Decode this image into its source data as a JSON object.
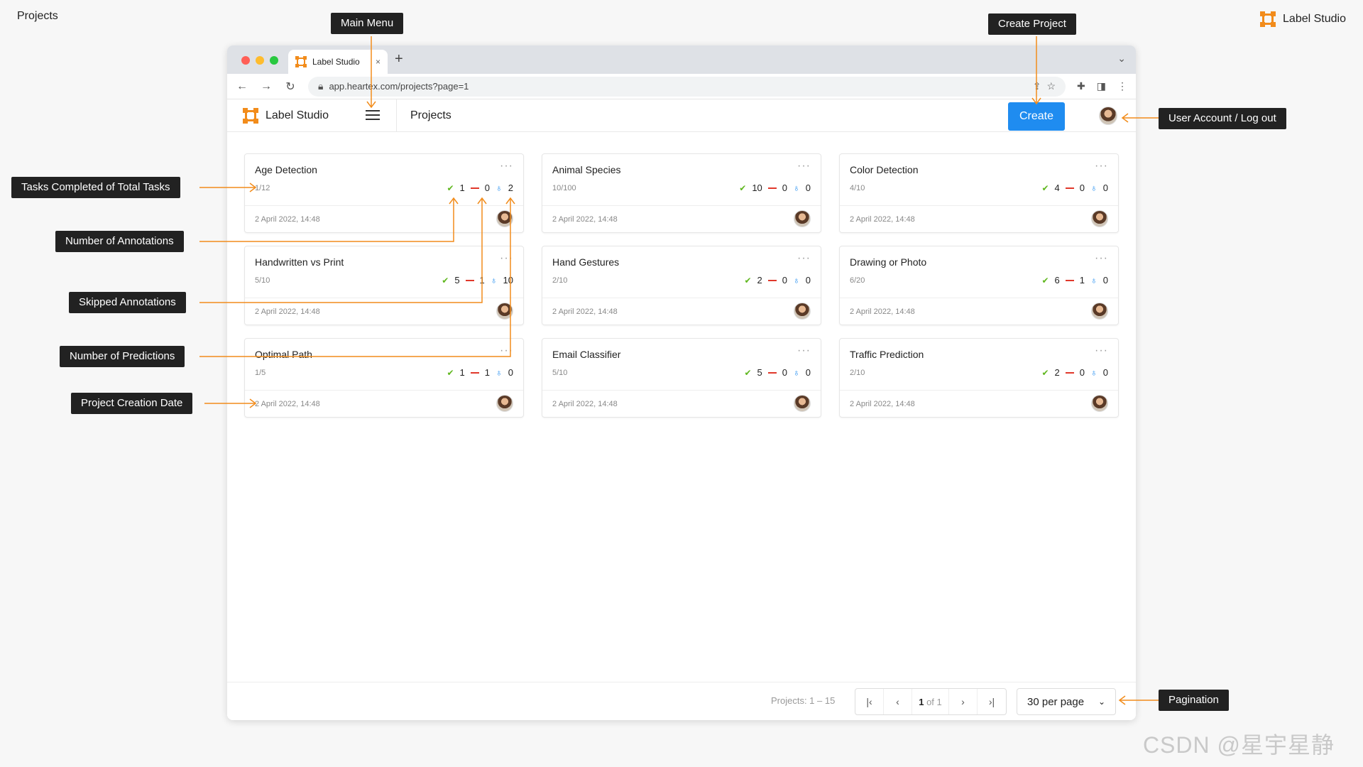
{
  "page_title": "Projects",
  "brand": "Label Studio",
  "browser": {
    "tab_title": "Label Studio",
    "tab_close": "×",
    "new_tab": "+",
    "url": "app.heartex.com/projects?page=1"
  },
  "app": {
    "brand": "Label Studio",
    "header_title": "Projects",
    "create_label": "Create"
  },
  "projects": [
    {
      "title": "Age Detection",
      "tasks": "1/12",
      "completed": "1",
      "skipped": "0",
      "predictions": "2",
      "date": "2 April 2022, 14:48"
    },
    {
      "title": "Animal Species",
      "tasks": "10/100",
      "completed": "10",
      "skipped": "0",
      "predictions": "0",
      "date": "2 April 2022, 14:48"
    },
    {
      "title": "Color Detection",
      "tasks": "4/10",
      "completed": "4",
      "skipped": "0",
      "predictions": "0",
      "date": "2 April 2022, 14:48"
    },
    {
      "title": "Handwritten vs Print",
      "tasks": "5/10",
      "completed": "5",
      "skipped": "1",
      "predictions": "10",
      "date": "2 April 2022, 14:48"
    },
    {
      "title": "Hand Gestures",
      "tasks": "2/10",
      "completed": "2",
      "skipped": "0",
      "predictions": "0",
      "date": "2 April 2022, 14:48"
    },
    {
      "title": "Drawing or Photo",
      "tasks": "6/20",
      "completed": "6",
      "skipped": "1",
      "predictions": "0",
      "date": "2 April 2022, 14:48"
    },
    {
      "title": "Optimal Path",
      "tasks": "1/5",
      "completed": "1",
      "skipped": "1",
      "predictions": "0",
      "date": "2 April 2022, 14:48"
    },
    {
      "title": "Email Classifier",
      "tasks": "5/10",
      "completed": "5",
      "skipped": "0",
      "predictions": "0",
      "date": "2 April 2022, 14:48"
    },
    {
      "title": "Traffic Prediction",
      "tasks": "2/10",
      "completed": "2",
      "skipped": "0",
      "predictions": "0",
      "date": "2 April 2022, 14:48"
    }
  ],
  "pagination": {
    "count_label": "Projects: 1 – 15",
    "current_page": "1",
    "of_label": "of 1",
    "per_page": "30 per page"
  },
  "callouts": {
    "main_menu": "Main Menu",
    "create_project": "Create Project",
    "user_account": "User Account / Log out",
    "tasks_completed": "Tasks Completed of Total Tasks",
    "num_annotations": "Number of Annotations",
    "skipped": "Skipped Annotations",
    "predictions": "Number of Predictions",
    "creation_date": "Project Creation Date",
    "pagination": "Pagination"
  },
  "watermark": "CSDN @星宇星静",
  "colors": {
    "accent": "#1f8cf0",
    "brand_orange": "#f28c1b",
    "callout_bg": "#222222",
    "check": "#5fb71e",
    "skip": "#e0382b"
  },
  "icons": {
    "menu": "hamburger-icon",
    "completed": "check-icon",
    "skipped": "minus-icon",
    "predictions": "lightbulb-icon"
  }
}
